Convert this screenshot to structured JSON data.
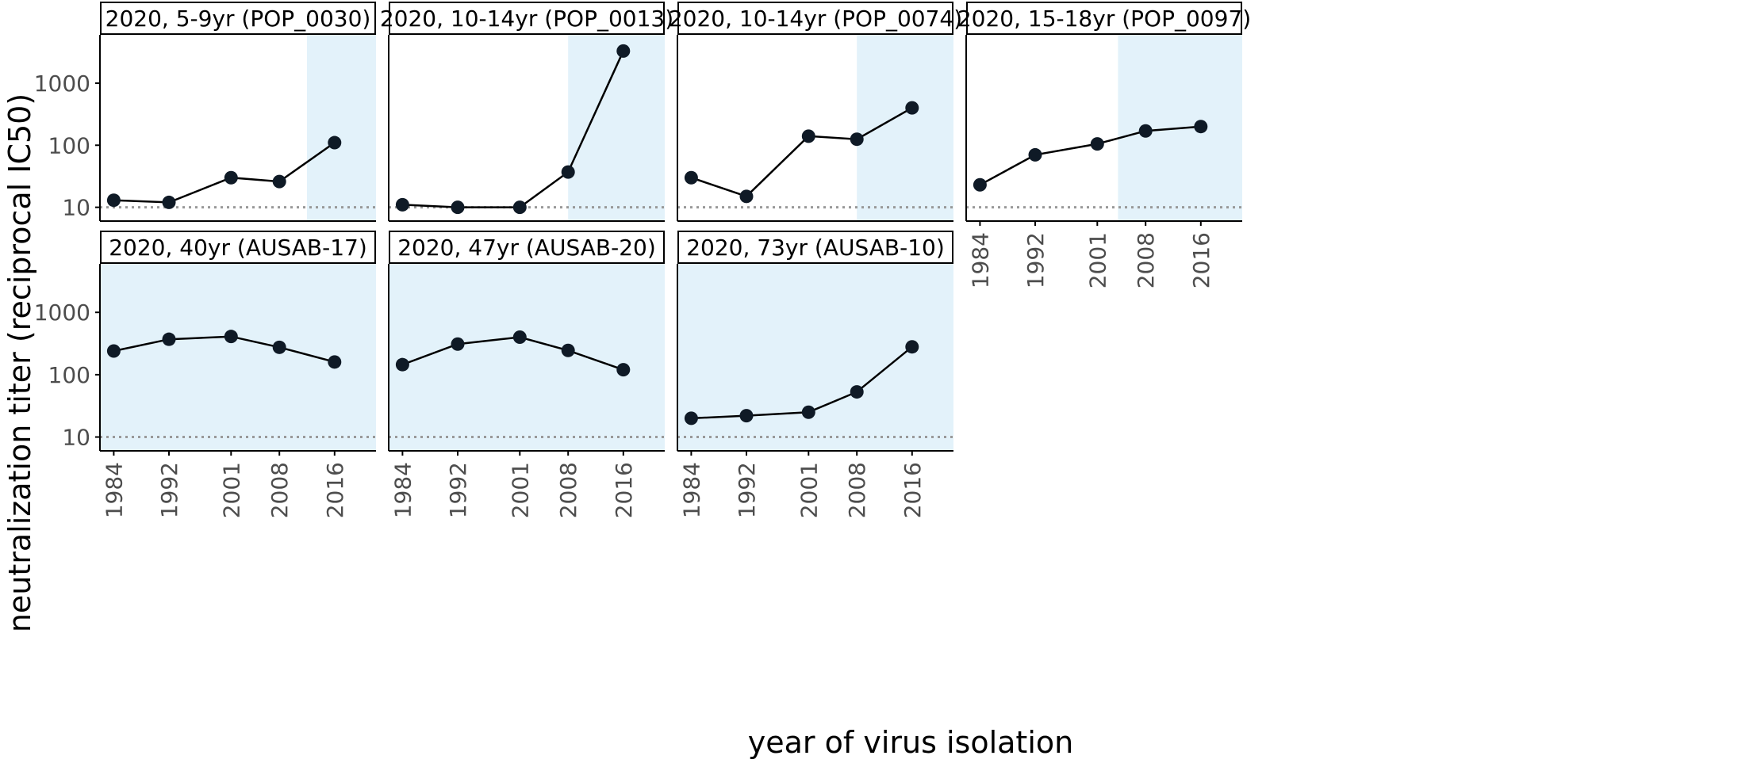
{
  "figure": {
    "ylabel": "neutralization titer (reciprocal IC50)",
    "xlabel": "year of virus isolation"
  },
  "chart_data": [
    {
      "type": "line",
      "title": "2020, 5-9yr (POP_0030)",
      "x": [
        1984,
        1992,
        2001,
        2008,
        2016
      ],
      "y": [
        13,
        12,
        30,
        26,
        110
      ],
      "yscale": "log",
      "ylim": [
        6,
        6000
      ],
      "xlim": [
        1982,
        2022
      ],
      "yticks": [
        10,
        100,
        1000
      ],
      "xticks": [
        1984,
        1992,
        2001,
        2008,
        2016
      ],
      "highlight_start": 2012,
      "limit_of_detection": 10,
      "show_x_ticks": false
    },
    {
      "type": "line",
      "title": "2020, 10-14yr (POP_0013)",
      "x": [
        1984,
        1992,
        2001,
        2008,
        2016
      ],
      "y": [
        11,
        10,
        10,
        37,
        3300
      ],
      "yscale": "log",
      "ylim": [
        6,
        6000
      ],
      "xlim": [
        1982,
        2022
      ],
      "yticks": [
        10,
        100,
        1000
      ],
      "xticks": [
        1984,
        1992,
        2001,
        2008,
        2016
      ],
      "highlight_start": 2008,
      "limit_of_detection": 10,
      "show_x_ticks": false
    },
    {
      "type": "line",
      "title": "2020, 10-14yr (POP_0074)",
      "x": [
        1984,
        1992,
        2001,
        2008,
        2016
      ],
      "y": [
        30,
        15,
        140,
        125,
        400
      ],
      "yscale": "log",
      "ylim": [
        6,
        6000
      ],
      "xlim": [
        1982,
        2022
      ],
      "yticks": [
        10,
        100,
        1000
      ],
      "xticks": [
        1984,
        1992,
        2001,
        2008,
        2016
      ],
      "highlight_start": 2008,
      "limit_of_detection": 10,
      "show_x_ticks": false
    },
    {
      "type": "line",
      "title": "2020, 15-18yr (POP_0097)",
      "x": [
        1984,
        1992,
        2001,
        2008,
        2016
      ],
      "y": [
        23,
        70,
        105,
        170,
        200
      ],
      "yscale": "log",
      "ylim": [
        6,
        6000
      ],
      "xlim": [
        1982,
        2022
      ],
      "yticks": [
        10,
        100,
        1000
      ],
      "xticks": [
        1984,
        1992,
        2001,
        2008,
        2016
      ],
      "highlight_start": 2004,
      "limit_of_detection": 10,
      "show_x_ticks": true
    },
    {
      "type": "line",
      "title": "2020, 40yr (AUSAB-17)",
      "x": [
        1984,
        1992,
        2001,
        2008,
        2016
      ],
      "y": [
        240,
        370,
        410,
        275,
        160
      ],
      "yscale": "log",
      "ylim": [
        6,
        6000
      ],
      "xlim": [
        1982,
        2022
      ],
      "yticks": [
        10,
        100,
        1000
      ],
      "xticks": [
        1984,
        1992,
        2001,
        2008,
        2016
      ],
      "highlight_start": 1982,
      "limit_of_detection": 10,
      "show_x_ticks": true
    },
    {
      "type": "line",
      "title": "2020, 47yr (AUSAB-20)",
      "x": [
        1984,
        1992,
        2001,
        2008,
        2016
      ],
      "y": [
        145,
        310,
        400,
        245,
        120
      ],
      "yscale": "log",
      "ylim": [
        6,
        6000
      ],
      "xlim": [
        1982,
        2022
      ],
      "yticks": [
        10,
        100,
        1000
      ],
      "xticks": [
        1984,
        1992,
        2001,
        2008,
        2016
      ],
      "highlight_start": 1982,
      "limit_of_detection": 10,
      "show_x_ticks": true
    },
    {
      "type": "line",
      "title": "2020, 73yr (AUSAB-10)",
      "x": [
        1984,
        1992,
        2001,
        2008,
        2016
      ],
      "y": [
        20,
        22,
        25,
        53,
        280
      ],
      "yscale": "log",
      "ylim": [
        6,
        6000
      ],
      "xlim": [
        1982,
        2022
      ],
      "yticks": [
        10,
        100,
        1000
      ],
      "xticks": [
        1984,
        1992,
        2001,
        2008,
        2016
      ],
      "highlight_start": 1982,
      "limit_of_detection": 10,
      "show_x_ticks": true
    }
  ],
  "colors": {
    "highlight": "#e3f2fa",
    "line": "#000000",
    "point": "#0f1a26",
    "limit_line": "#999999",
    "tick_label": "#4d4d4d",
    "axis_title": "#000000",
    "strip_background": "#ffffff"
  }
}
